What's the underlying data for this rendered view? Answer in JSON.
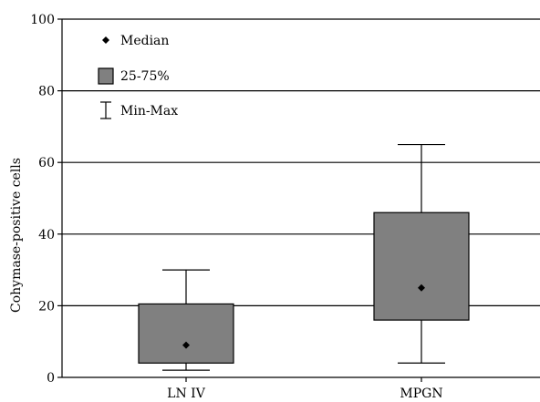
{
  "chart_data": {
    "type": "box",
    "title": "",
    "xlabel": "",
    "ylabel": "Cohymase-positive cells",
    "ylim": [
      0,
      100
    ],
    "yticks": [
      0,
      20,
      40,
      60,
      80,
      100
    ],
    "grid": "horizontal lines at y ticks",
    "categories": [
      "LN IV",
      "MPGN"
    ],
    "boxes": [
      {
        "category": "LN IV",
        "min": 2,
        "q1": 4,
        "median": 9,
        "q3": 20.5,
        "max": 30
      },
      {
        "category": "MPGN",
        "min": 4,
        "q1": 16,
        "median": 25,
        "q3": 46,
        "max": 65
      }
    ],
    "legend": {
      "placement": "top-left",
      "entries": [
        {
          "symbol": "diamond",
          "label": "Median"
        },
        {
          "symbol": "box",
          "label": "25-75%"
        },
        {
          "symbol": "whisker",
          "label": "Min-Max"
        }
      ]
    },
    "colors": {
      "box_fill": "#808080",
      "line": "#000000",
      "median_marker": "#000000"
    }
  }
}
